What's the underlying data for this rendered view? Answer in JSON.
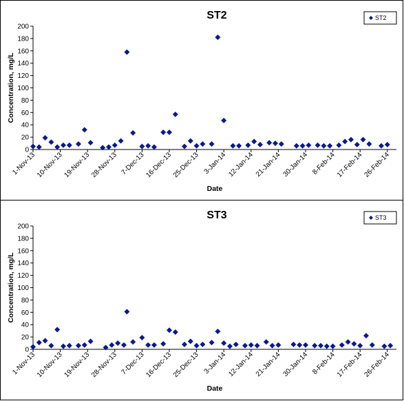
{
  "chart_data": [
    {
      "type": "scatter",
      "title": "ST2",
      "xlabel": "Date",
      "ylabel": "Concentration, mg/L",
      "ylim": [
        0,
        200
      ],
      "yticks": [
        "0",
        "20",
        "40",
        "60",
        "80",
        "100",
        "120",
        "140",
        "160",
        "180",
        "200"
      ],
      "xlim": [
        "2013-11-01",
        "2014-03-01"
      ],
      "xticks": [
        "1-Nov-13",
        "10-Nov-13",
        "19-Nov-13",
        "28-Nov-13",
        "7-Dec-13",
        "16-Dec-13",
        "25-Dec-13",
        "3-Jan-14",
        "12-Jan-14",
        "21-Jan-14",
        "30-Jan-14",
        "8-Feb-14",
        "17-Feb-14",
        "26-Feb-14"
      ],
      "grid": false,
      "legend_position": "top-right",
      "marker_color": "#0a1a8c",
      "series": [
        {
          "name": "ST2",
          "points": [
            [
              "2013-11-01",
              5
            ],
            [
              "2013-11-03",
              4
            ],
            [
              "2013-11-05",
              19
            ],
            [
              "2013-11-07",
              12
            ],
            [
              "2013-11-09",
              4
            ],
            [
              "2013-11-11",
              7
            ],
            [
              "2013-11-13",
              7
            ],
            [
              "2013-11-16",
              9
            ],
            [
              "2013-11-18",
              32
            ],
            [
              "2013-11-20",
              11
            ],
            [
              "2013-11-24",
              3
            ],
            [
              "2013-11-26",
              4
            ],
            [
              "2013-11-28",
              7
            ],
            [
              "2013-11-30",
              14
            ],
            [
              "2013-12-02",
              158
            ],
            [
              "2013-12-04",
              27
            ],
            [
              "2013-12-07",
              5
            ],
            [
              "2013-12-09",
              6
            ],
            [
              "2013-12-11",
              4
            ],
            [
              "2013-12-14",
              28
            ],
            [
              "2013-12-16",
              28
            ],
            [
              "2013-12-18",
              57
            ],
            [
              "2013-12-21",
              5
            ],
            [
              "2013-12-23",
              14
            ],
            [
              "2013-12-25",
              6
            ],
            [
              "2013-12-27",
              9
            ],
            [
              "2013-12-30",
              9
            ],
            [
              "2014-01-01",
              182
            ],
            [
              "2014-01-03",
              47
            ],
            [
              "2014-01-06",
              6
            ],
            [
              "2014-01-08",
              6
            ],
            [
              "2014-01-11",
              7
            ],
            [
              "2014-01-13",
              13
            ],
            [
              "2014-01-15",
              8
            ],
            [
              "2014-01-18",
              11
            ],
            [
              "2014-01-20",
              10
            ],
            [
              "2014-01-22",
              9
            ],
            [
              "2014-01-27",
              6
            ],
            [
              "2014-01-29",
              6
            ],
            [
              "2014-01-31",
              7
            ],
            [
              "2014-02-03",
              7
            ],
            [
              "2014-02-05",
              6
            ],
            [
              "2014-02-07",
              6
            ],
            [
              "2014-02-10",
              7
            ],
            [
              "2014-02-12",
              13
            ],
            [
              "2014-02-14",
              16
            ],
            [
              "2014-02-16",
              8
            ],
            [
              "2014-02-18",
              16
            ],
            [
              "2014-02-20",
              9
            ],
            [
              "2014-02-24",
              6
            ],
            [
              "2014-02-26",
              8
            ]
          ]
        }
      ]
    },
    {
      "type": "scatter",
      "title": "ST3",
      "xlabel": "Date",
      "ylabel": "Concentration, mg/L",
      "ylim": [
        0,
        200
      ],
      "yticks": [
        "0",
        "20",
        "40",
        "60",
        "80",
        "100",
        "120",
        "140",
        "160",
        "180",
        "200"
      ],
      "xlim": [
        "2013-11-01",
        "2014-03-01"
      ],
      "xticks": [
        "1-Nov-13",
        "10-Nov-13",
        "19-Nov-13",
        "28-Nov-13",
        "7-Dec-13",
        "16-Dec-13",
        "25-Dec-13",
        "3-Jan-14",
        "12-Jan-14",
        "21-Jan-14",
        "30-Jan-14",
        "8-Feb-14",
        "17-Feb-14",
        "26-Feb-14"
      ],
      "grid": false,
      "legend_position": "top-right",
      "marker_color": "#0a1a8c",
      "series": [
        {
          "name": "ST3",
          "points": [
            [
              "2013-11-01",
              4
            ],
            [
              "2013-11-03",
              11
            ],
            [
              "2013-11-05",
              14
            ],
            [
              "2013-11-07",
              6
            ],
            [
              "2013-11-09",
              32
            ],
            [
              "2013-11-11",
              5
            ],
            [
              "2013-11-13",
              6
            ],
            [
              "2013-11-16",
              6
            ],
            [
              "2013-11-18",
              7
            ],
            [
              "2013-11-20",
              13
            ],
            [
              "2013-11-25",
              3
            ],
            [
              "2013-11-27",
              7
            ],
            [
              "2013-11-29",
              10
            ],
            [
              "2013-12-01",
              7
            ],
            [
              "2013-12-02",
              61
            ],
            [
              "2013-12-04",
              12
            ],
            [
              "2013-12-07",
              19
            ],
            [
              "2013-12-09",
              7
            ],
            [
              "2013-12-11",
              7
            ],
            [
              "2013-12-14",
              9
            ],
            [
              "2013-12-16",
              31
            ],
            [
              "2013-12-18",
              28
            ],
            [
              "2013-12-21",
              8
            ],
            [
              "2013-12-23",
              13
            ],
            [
              "2013-12-25",
              6
            ],
            [
              "2013-12-27",
              8
            ],
            [
              "2013-12-30",
              11
            ],
            [
              "2014-01-01",
              29
            ],
            [
              "2014-01-03",
              10
            ],
            [
              "2014-01-05",
              5
            ],
            [
              "2014-01-07",
              8
            ],
            [
              "2014-01-10",
              6
            ],
            [
              "2014-01-12",
              7
            ],
            [
              "2014-01-14",
              6
            ],
            [
              "2014-01-17",
              12
            ],
            [
              "2014-01-19",
              6
            ],
            [
              "2014-01-21",
              7
            ],
            [
              "2014-01-26",
              8
            ],
            [
              "2014-01-28",
              7
            ],
            [
              "2014-01-30",
              7
            ],
            [
              "2014-02-02",
              6
            ],
            [
              "2014-02-04",
              6
            ],
            [
              "2014-02-06",
              5
            ],
            [
              "2014-02-08",
              5
            ],
            [
              "2014-02-11",
              7
            ],
            [
              "2014-02-13",
              12
            ],
            [
              "2014-02-15",
              9
            ],
            [
              "2014-02-17",
              6
            ],
            [
              "2014-02-19",
              22
            ],
            [
              "2014-02-21",
              7
            ],
            [
              "2014-02-25",
              5
            ],
            [
              "2014-02-27",
              6
            ]
          ]
        }
      ]
    }
  ]
}
